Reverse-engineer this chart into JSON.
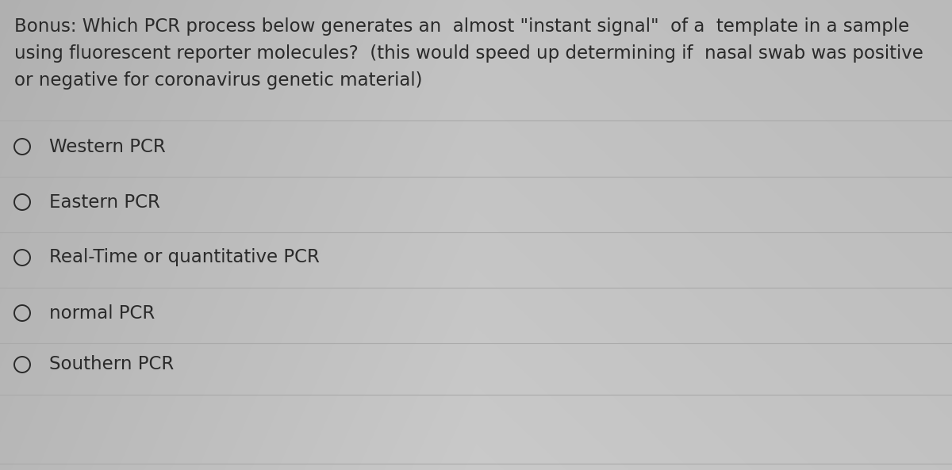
{
  "bg_color_left": "#b8b8b8",
  "bg_color_center": "#d8d8d8",
  "bg_color_right": "#c8c8c8",
  "text_color": "#2a2a2a",
  "question_line1": "Bonus: Which PCR process below generates an  almost \"instant signal\"  of a  template in a sample",
  "question_line2": "using fluorescent reporter molecules?  (this would speed up determining if  nasal swab was positive",
  "question_line3": "or negative for coronavirus genetic material)",
  "options": [
    "Western PCR",
    "Eastern PCR",
    "Real-Time or quantitative PCR",
    "normal PCR",
    "Southern PCR"
  ],
  "question_fontsize": 16.5,
  "option_fontsize": 16.5,
  "divider_color": "#aaaaaa",
  "divider_lw": 0.8
}
